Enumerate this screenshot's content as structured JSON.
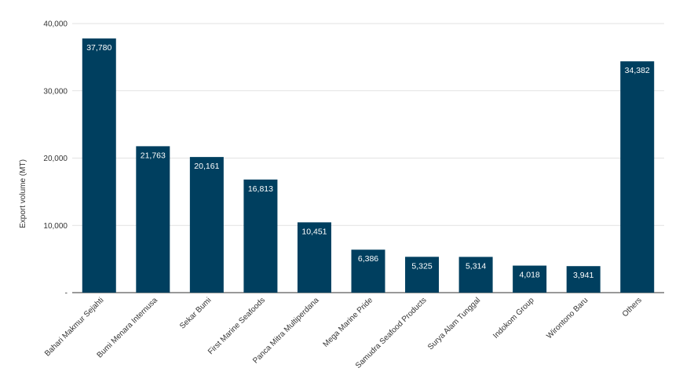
{
  "chart_data": {
    "type": "bar",
    "title": "",
    "xlabel": "",
    "ylabel": "Export volume (MT)",
    "ylim": [
      0,
      40000
    ],
    "yticks": [
      0,
      10000,
      20000,
      30000,
      40000
    ],
    "ytick_labels": [
      "-",
      "10,000",
      "20,000",
      "30,000",
      "40,000"
    ],
    "grid": true,
    "legend": "none",
    "categories": [
      "Bahari Makmur Sejahti",
      "Bumi Menara Internusa",
      "Sekar Bumi",
      "First Marine Seafoods",
      "Panca Mitra Multiperdana",
      "Mega Marine Pride",
      "Samudra Seafood Products",
      "Surya Alam Tunggal",
      "Indokom Group",
      "Wirontono Baru",
      "Others"
    ],
    "values": [
      37780,
      21763,
      20161,
      16813,
      10451,
      6386,
      5325,
      5314,
      4018,
      3941,
      34382
    ],
    "value_labels": [
      "37,780",
      "21,763",
      "20,161",
      "16,813",
      "10,451",
      "6,386",
      "5,325",
      "5,314",
      "4,018",
      "3,941",
      "34,382"
    ],
    "colors": {
      "bar": "#003f5f",
      "grid": "#d9d9d9",
      "axis": "#333333"
    }
  }
}
